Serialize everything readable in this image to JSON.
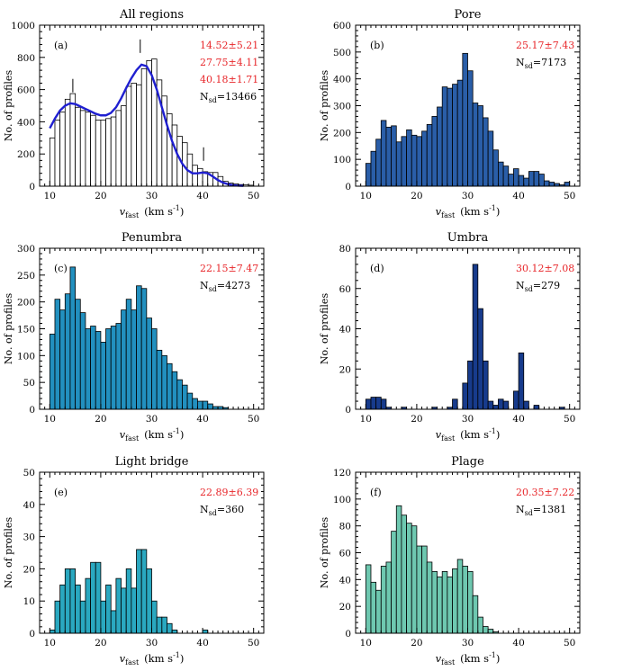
{
  "figure": {
    "xlabel_var": "v",
    "xlabel_sub": "fast",
    "xlabel_unit": "(km s",
    "xlabel_exp": "-1",
    "xlabel_close": ")",
    "ylabel": "No. of profiles",
    "nsd_prefix": "N",
    "nsd_sub": "sd"
  },
  "colors": {
    "axis": "#000000",
    "fit_curve": "#1f1fd0",
    "stats_red": "#e8262a",
    "bar_edge": "#000000"
  },
  "chart_data": [
    {
      "type": "bar",
      "id": "all",
      "title": "All regions",
      "panel_label": "(a)",
      "bar_color": "#ffffff",
      "xlim": [
        8,
        52
      ],
      "xticks": [
        10,
        20,
        30,
        40,
        50
      ],
      "ylim": [
        0,
        1000
      ],
      "yticks": [
        0,
        200,
        400,
        600,
        800,
        1000
      ],
      "bin_start": 10,
      "bin_width": 1,
      "values": [
        300,
        410,
        460,
        540,
        575,
        490,
        470,
        460,
        440,
        410,
        410,
        420,
        430,
        470,
        500,
        620,
        640,
        630,
        730,
        780,
        790,
        660,
        560,
        450,
        380,
        310,
        270,
        200,
        130,
        110,
        90,
        85,
        85,
        60,
        30,
        20,
        15,
        10,
        8,
        6
      ],
      "stats_red": [
        "14.52±5.21",
        "27.75±4.11",
        "40.18±1.71"
      ],
      "nsd_value": "=13466",
      "fit_curve": {
        "x": [
          10,
          11,
          12,
          13,
          14,
          15,
          16,
          17,
          18,
          19,
          20,
          21,
          22,
          23,
          24,
          25,
          26,
          27,
          28,
          29,
          30,
          31,
          32,
          33,
          34,
          35,
          36,
          37,
          38,
          39,
          40,
          41,
          42,
          43,
          44,
          45,
          46,
          47,
          48
        ],
        "y": [
          360,
          420,
          470,
          500,
          515,
          510,
          495,
          480,
          465,
          450,
          440,
          440,
          455,
          490,
          545,
          610,
          670,
          720,
          755,
          745,
          690,
          600,
          490,
          380,
          280,
          200,
          140,
          100,
          80,
          80,
          85,
          80,
          60,
          38,
          22,
          12,
          6,
          3,
          2
        ]
      },
      "peak_markers": [
        14.52,
        27.75,
        40.18
      ]
    },
    {
      "type": "bar",
      "id": "pore",
      "title": "Pore",
      "panel_label": "(b)",
      "bar_color": "#2a5ea8",
      "xlim": [
        8,
        52
      ],
      "xticks": [
        10,
        20,
        30,
        40,
        50
      ],
      "ylim": [
        0,
        600
      ],
      "yticks": [
        0,
        100,
        200,
        300,
        400,
        500,
        600
      ],
      "bin_start": 10,
      "bin_width": 1,
      "values": [
        85,
        130,
        175,
        245,
        220,
        225,
        165,
        185,
        210,
        190,
        185,
        205,
        230,
        260,
        295,
        370,
        365,
        380,
        395,
        495,
        430,
        310,
        300,
        255,
        205,
        135,
        90,
        75,
        45,
        65,
        40,
        30,
        55,
        55,
        45,
        20,
        15,
        10,
        5,
        15
      ],
      "stats_red": [
        "25.17±7.43"
      ],
      "nsd_value": "=7173"
    },
    {
      "type": "bar",
      "id": "penumbra",
      "title": "Penumbra",
      "panel_label": "(c)",
      "bar_color": "#2290bf",
      "xlim": [
        8,
        52
      ],
      "xticks": [
        10,
        20,
        30,
        40,
        50
      ],
      "ylim": [
        0,
        300
      ],
      "yticks": [
        0,
        50,
        100,
        150,
        200,
        250,
        300
      ],
      "bin_start": 10,
      "bin_width": 1,
      "values": [
        140,
        205,
        185,
        215,
        265,
        205,
        180,
        150,
        155,
        145,
        125,
        150,
        155,
        160,
        185,
        205,
        185,
        230,
        225,
        170,
        150,
        110,
        100,
        85,
        70,
        55,
        45,
        30,
        20,
        15,
        15,
        10,
        5,
        5,
        3
      ],
      "stats_red": [
        "22.15±7.47"
      ],
      "nsd_value": "=4273"
    },
    {
      "type": "bar",
      "id": "umbra",
      "title": "Umbra",
      "panel_label": "(d)",
      "bar_color": "#173b8c",
      "xlim": [
        8,
        52
      ],
      "xticks": [
        10,
        20,
        30,
        40,
        50
      ],
      "ylim": [
        0,
        80
      ],
      "yticks": [
        0,
        20,
        40,
        60,
        80
      ],
      "bin_start": 10,
      "bin_width": 1,
      "values": [
        5,
        6,
        6,
        5,
        1,
        0,
        0,
        1,
        0,
        0,
        0,
        0,
        0,
        1,
        0,
        0,
        1,
        5,
        0,
        13,
        24,
        72,
        50,
        24,
        4,
        2,
        5,
        4,
        0,
        9,
        28,
        4,
        0,
        2,
        0,
        0,
        0,
        0,
        1
      ],
      "stats_red": [
        "30.12±7.08"
      ],
      "nsd_value": "=279"
    },
    {
      "type": "bar",
      "id": "lightbridge",
      "title": "Light bridge",
      "panel_label": "(e)",
      "bar_color": "#2aa8c0",
      "xlim": [
        8,
        52
      ],
      "xticks": [
        10,
        20,
        30,
        40,
        50
      ],
      "ylim": [
        0,
        50
      ],
      "yticks": [
        0,
        10,
        20,
        30,
        40,
        50
      ],
      "bin_start": 10,
      "bin_width": 1,
      "values": [
        1,
        10,
        15,
        20,
        20,
        15,
        10,
        17,
        22,
        22,
        10,
        15,
        7,
        17,
        14,
        20,
        14,
        26,
        26,
        20,
        10,
        5,
        5,
        3,
        1,
        0,
        0,
        0,
        0,
        0,
        1
      ],
      "stats_red": [
        "22.89±6.39"
      ],
      "nsd_value": "=360"
    },
    {
      "type": "bar",
      "id": "plage",
      "title": "Plage",
      "panel_label": "(f)",
      "bar_color": "#6ec8b0",
      "xlim": [
        8,
        52
      ],
      "xticks": [
        10,
        20,
        30,
        40,
        50
      ],
      "ylim": [
        0,
        120
      ],
      "yticks": [
        0,
        20,
        40,
        60,
        80,
        100,
        120
      ],
      "bin_start": 10,
      "bin_width": 1,
      "values": [
        51,
        38,
        32,
        50,
        53,
        76,
        95,
        88,
        82,
        80,
        65,
        65,
        53,
        46,
        42,
        46,
        42,
        48,
        55,
        50,
        46,
        28,
        12,
        5,
        3,
        1
      ],
      "stats_red": [
        "20.35±7.22"
      ],
      "nsd_value": "=1381"
    }
  ]
}
